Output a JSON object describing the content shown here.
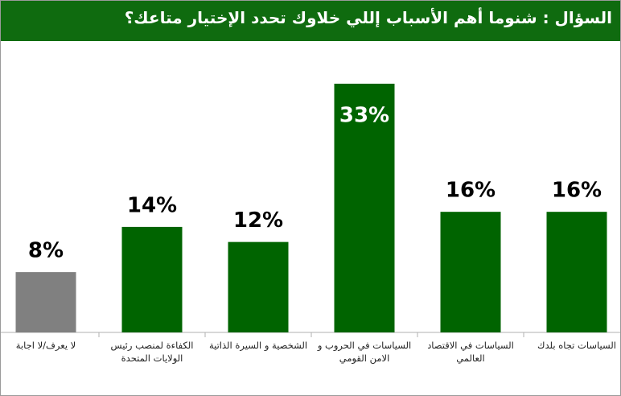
{
  "header": {
    "title": "السؤال : شنوما أهم الأسباب إللي خلاوك تحدد الإختيار متاعك؟"
  },
  "chart_data": {
    "type": "bar",
    "categories": [
      "لا يعرف/لا اجابة",
      "الكفاءة لمنصب رئيس الولايات المتحدة",
      "الشخصية و السيرة الذاتية",
      "السياسات في الحروب و الامن القومي",
      "السياسات في الاقتصاد العالمي",
      "السياسات تجاه بلدك"
    ],
    "values": [
      8,
      14,
      12,
      33,
      16,
      16
    ],
    "value_labels": [
      "8%",
      "14%",
      "12%",
      "33%",
      "16%",
      "16%"
    ],
    "colors": [
      "#808080",
      "#006400",
      "#006400",
      "#006400",
      "#006400",
      "#006400"
    ]
  }
}
